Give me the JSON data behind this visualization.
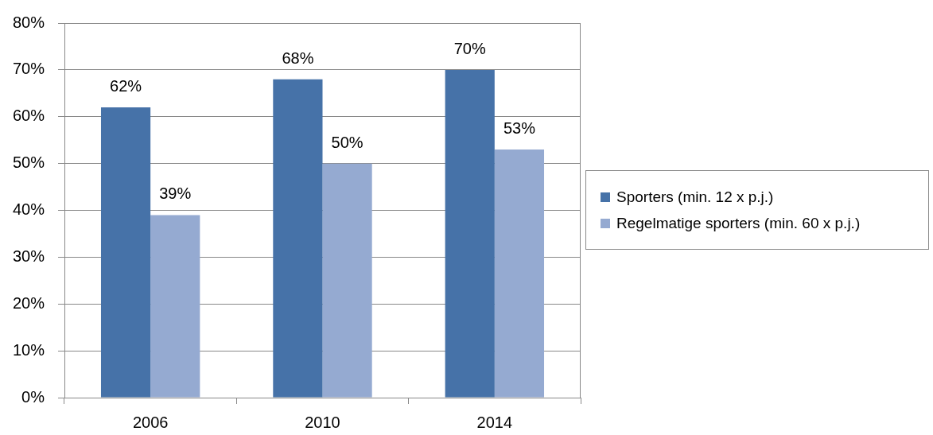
{
  "chart_data": {
    "type": "bar",
    "categories": [
      "2006",
      "2010",
      "2014"
    ],
    "series": [
      {
        "name": "Sporters (min. 12 x p.j.)",
        "color": "#4672a8",
        "values": [
          62,
          68,
          70
        ],
        "value_labels": [
          "62%",
          "68%",
          "70%"
        ]
      },
      {
        "name": "Regelmatige sporters (min. 60 x p.j.)",
        "color": "#95aad1",
        "values": [
          39,
          50,
          53
        ],
        "value_labels": [
          "39%",
          "50%",
          "53%"
        ]
      }
    ],
    "ylim": [
      0,
      80
    ],
    "yticks": [
      {
        "value": 0,
        "label": "0%"
      },
      {
        "value": 10,
        "label": "10%"
      },
      {
        "value": 20,
        "label": "20%"
      },
      {
        "value": 30,
        "label": "30%"
      },
      {
        "value": 40,
        "label": "40%"
      },
      {
        "value": 50,
        "label": "50%"
      },
      {
        "value": 60,
        "label": "60%"
      },
      {
        "value": 70,
        "label": "70%"
      },
      {
        "value": 80,
        "label": "80%"
      }
    ],
    "grid": "y",
    "legend": "right"
  }
}
